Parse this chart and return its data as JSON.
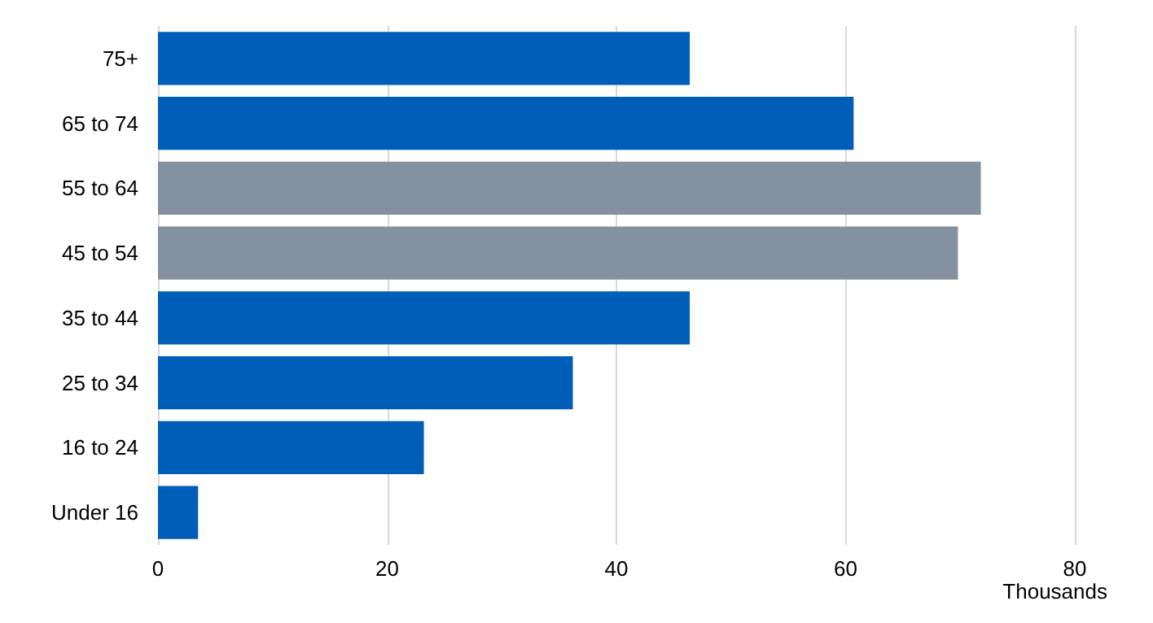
{
  "chart_data": {
    "type": "bar",
    "orientation": "horizontal",
    "categories": [
      "75+",
      "65 to 74",
      "55 to 64",
      "45 to 54",
      "35 to 44",
      "25 to 34",
      "16 to 24",
      "Under 16"
    ],
    "values": [
      46.4,
      60.7,
      71.8,
      69.8,
      46.4,
      36.2,
      23.2,
      3.5
    ],
    "colors": [
      "#005eb8",
      "#005eb8",
      "#8491a0",
      "#8491a0",
      "#005eb8",
      "#005eb8",
      "#005eb8",
      "#005eb8"
    ],
    "xlabel": "Thousands",
    "xlim": [
      0,
      80
    ],
    "xticks": [
      0,
      20,
      40,
      60,
      80
    ],
    "grid": "x"
  }
}
